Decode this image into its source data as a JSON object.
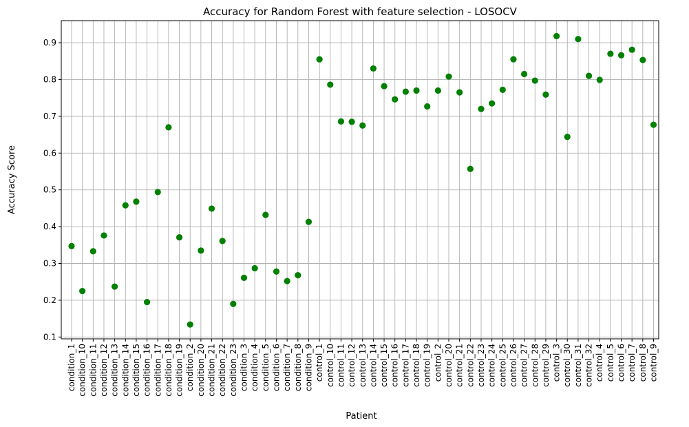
{
  "chart_data": {
    "type": "scatter",
    "title": "Accuracy for Random Forest with feature selection - LOSOCV",
    "xlabel": "Patient",
    "ylabel": "Accuracy Score",
    "ylim": [
      0.095,
      0.96
    ],
    "yticks": [
      0.1,
      0.2,
      0.3,
      0.4,
      0.5,
      0.6,
      0.7,
      0.8,
      0.9
    ],
    "grid": true,
    "marker_color": "#008000",
    "categories": [
      "condition_1",
      "condition_10",
      "condition_11",
      "condition_12",
      "condition_13",
      "condition_14",
      "condition_15",
      "condition_16",
      "condition_17",
      "condition_18",
      "condition_19",
      "condition_2",
      "condition_20",
      "condition_21",
      "condition_22",
      "condition_23",
      "condition_3",
      "condition_4",
      "condition_5",
      "condition_6",
      "condition_7",
      "condition_8",
      "condition_9",
      "control_1",
      "control_10",
      "control_11",
      "control_12",
      "control_13",
      "control_14",
      "control_15",
      "control_16",
      "control_17",
      "control_18",
      "control_19",
      "control_2",
      "control_20",
      "control_21",
      "control_22",
      "control_23",
      "control_24",
      "control_25",
      "control_26",
      "control_27",
      "control_28",
      "control_29",
      "control_3",
      "control_30",
      "control_31",
      "control_32",
      "control_4",
      "control_5",
      "control_6",
      "control_7",
      "control_8",
      "control_9"
    ],
    "values": [
      0.347,
      0.225,
      0.333,
      0.376,
      0.237,
      0.458,
      0.468,
      0.195,
      0.494,
      0.67,
      0.371,
      0.134,
      0.335,
      0.449,
      0.361,
      0.19,
      0.261,
      0.287,
      0.432,
      0.278,
      0.252,
      0.268,
      0.413,
      0.855,
      0.786,
      0.686,
      0.685,
      0.675,
      0.83,
      0.782,
      0.746,
      0.767,
      0.77,
      0.727,
      0.77,
      0.808,
      0.765,
      0.557,
      0.72,
      0.735,
      0.772,
      0.855,
      0.815,
      0.797,
      0.759,
      0.918,
      0.644,
      0.91,
      0.81,
      0.799,
      0.87,
      0.866,
      0.881,
      0.853,
      0.677
    ]
  }
}
